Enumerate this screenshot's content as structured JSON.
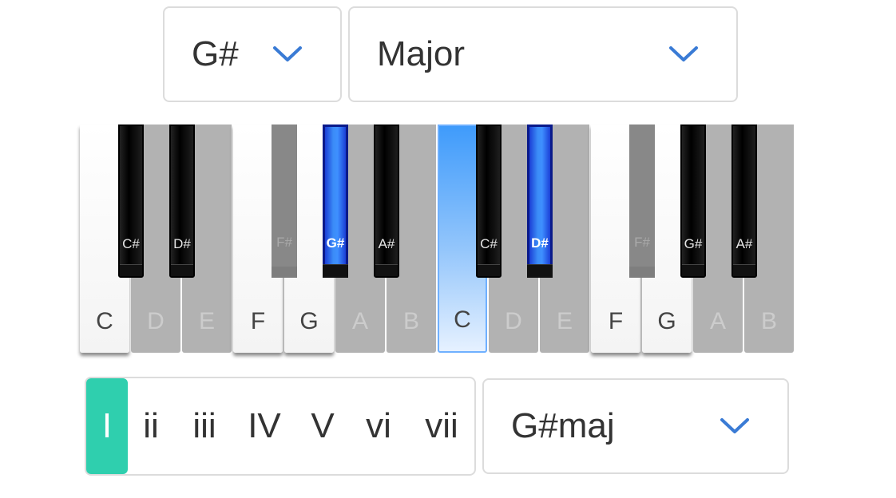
{
  "root_select": {
    "value": "G#",
    "icon": "chevron-down-icon"
  },
  "scale_select": {
    "value": "Major",
    "icon": "chevron-down-icon"
  },
  "chord_select": {
    "value": "G#maj",
    "icon": "chevron-down-icon"
  },
  "colors": {
    "accent": "#2fcfae",
    "chevron": "#3a7bd5",
    "selected_key": "#3e90ff",
    "border": "#dcdcdc"
  },
  "piano": {
    "white_keys": [
      {
        "label": "C",
        "state": "on"
      },
      {
        "label": "D",
        "state": "off"
      },
      {
        "label": "E",
        "state": "off"
      },
      {
        "label": "F",
        "state": "on"
      },
      {
        "label": "G",
        "state": "on"
      },
      {
        "label": "A",
        "state": "off"
      },
      {
        "label": "B",
        "state": "off"
      },
      {
        "label": "C",
        "state": "selected"
      },
      {
        "label": "D",
        "state": "off"
      },
      {
        "label": "E",
        "state": "off"
      },
      {
        "label": "F",
        "state": "on"
      },
      {
        "label": "G",
        "state": "on"
      },
      {
        "label": "A",
        "state": "off"
      },
      {
        "label": "B",
        "state": "off"
      }
    ],
    "black_keys": [
      {
        "label": "C#",
        "state": "on"
      },
      {
        "label": "D#",
        "state": "on"
      },
      {
        "label": "F#",
        "state": "off"
      },
      {
        "label": "G#",
        "state": "selected"
      },
      {
        "label": "A#",
        "state": "on"
      },
      {
        "label": "C#",
        "state": "on"
      },
      {
        "label": "D#",
        "state": "selected"
      },
      {
        "label": "F#",
        "state": "off"
      },
      {
        "label": "G#",
        "state": "on"
      },
      {
        "label": "A#",
        "state": "on"
      }
    ]
  },
  "degrees": {
    "items": [
      "I",
      "ii",
      "iii",
      "IV",
      "V",
      "vi",
      "vii"
    ],
    "active": "I"
  }
}
